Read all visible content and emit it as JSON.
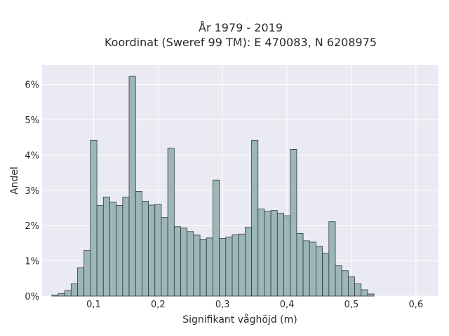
{
  "chart_data": {
    "type": "bar",
    "title": "År 1979 - 2019",
    "subtitle": "Koordinat (Sweref 99 TM): E 470083, N 6208975",
    "xlabel": "Signifikant våghöjd (m)",
    "ylabel": "Andel",
    "xlim": [
      0.02,
      0.635
    ],
    "ylim": [
      0,
      0.0655
    ],
    "grid": true,
    "x_ticks": [
      0.1,
      0.2,
      0.3,
      0.4,
      0.5,
      0.6
    ],
    "x_tick_labels": [
      "0,1",
      "0,2",
      "0,3",
      "0,4",
      "0,5",
      "0,6"
    ],
    "y_ticks": [
      0,
      0.01,
      0.02,
      0.03,
      0.04,
      0.05,
      0.06
    ],
    "y_tick_labels": [
      "0%",
      "1%",
      "2%",
      "3%",
      "4%",
      "5%",
      "6%"
    ],
    "bin_start": 0.035,
    "bin_width": 0.01,
    "values": [
      0.0003,
      0.0007,
      0.0016,
      0.0035,
      0.008,
      0.013,
      0.0442,
      0.0257,
      0.0281,
      0.0266,
      0.0257,
      0.028,
      0.0623,
      0.0297,
      0.0269,
      0.0258,
      0.026,
      0.0223,
      0.0419,
      0.0197,
      0.0193,
      0.0183,
      0.0173,
      0.016,
      0.0165,
      0.0329,
      0.0164,
      0.0167,
      0.0174,
      0.0176,
      0.0195,
      0.0442,
      0.0247,
      0.024,
      0.0243,
      0.0235,
      0.0228,
      0.0416,
      0.0178,
      0.0157,
      0.0153,
      0.0141,
      0.0121,
      0.0211,
      0.0086,
      0.0072,
      0.0055,
      0.0035,
      0.0018,
      0.0006
    ],
    "colors": {
      "bar": "#9db6b8",
      "bar_edge": "#2f3a3a",
      "plot_bg": "#eaeaf2",
      "grid": "#ffffff"
    }
  }
}
